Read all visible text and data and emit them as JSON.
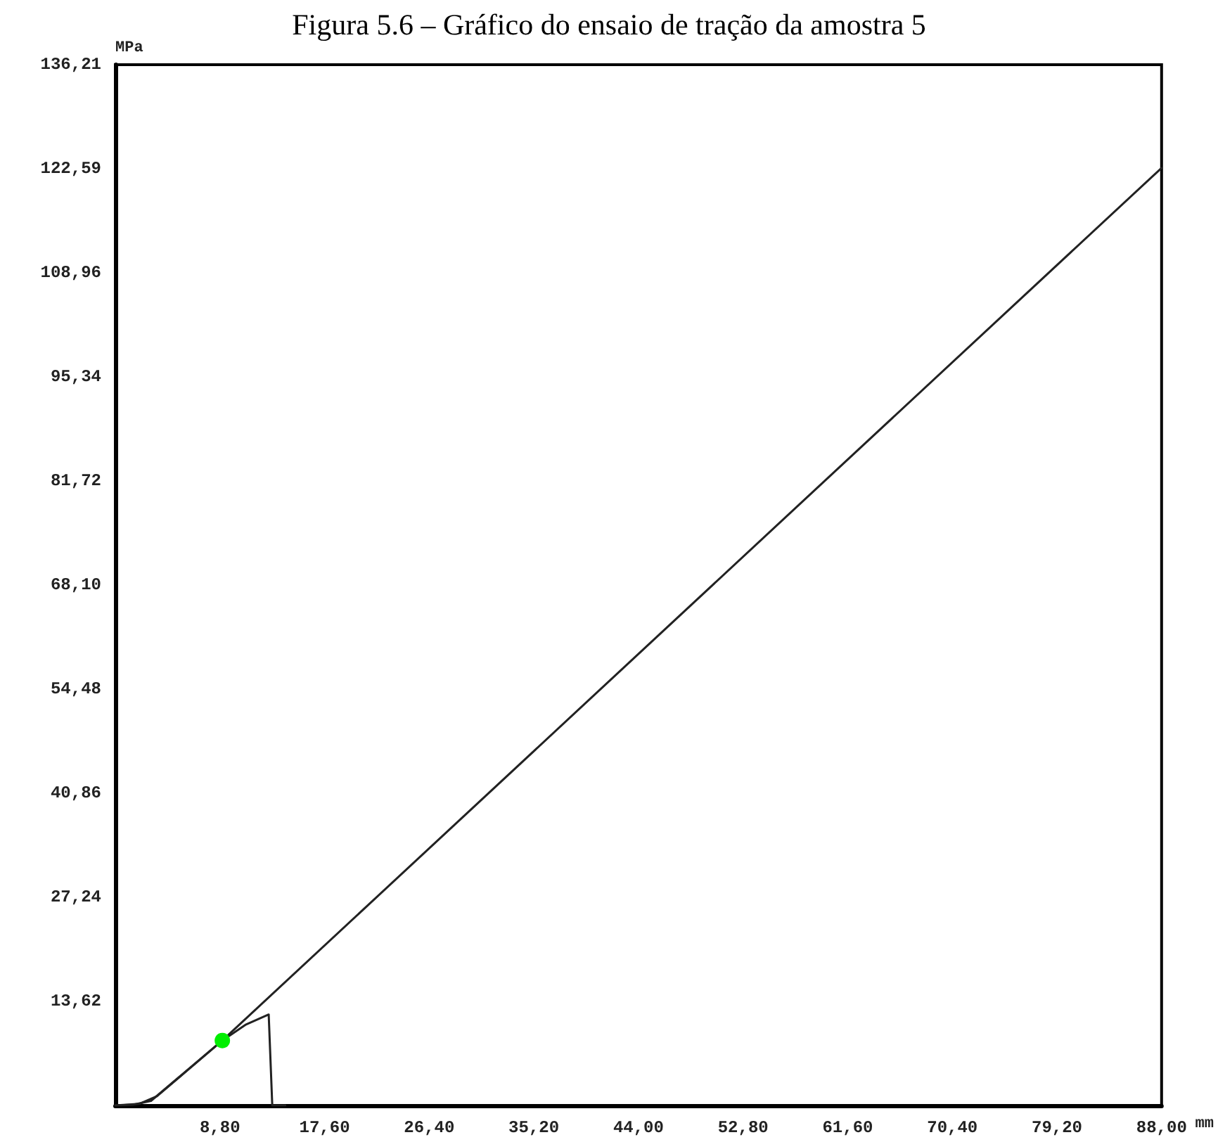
{
  "chart_data": {
    "type": "line",
    "title": "Figura 5.6 – Gráfico do ensaio de tração da amostra 5",
    "xlabel": "mm",
    "ylabel": "MPa",
    "xlim": [
      0,
      88
    ],
    "ylim": [
      0,
      136.21
    ],
    "xticks": [
      {
        "value": 8.8,
        "label": "8,80"
      },
      {
        "value": 17.6,
        "label": "17,60"
      },
      {
        "value": 26.4,
        "label": "26,40"
      },
      {
        "value": 35.2,
        "label": "35,20"
      },
      {
        "value": 44,
        "label": "44,00"
      },
      {
        "value": 52.8,
        "label": "52,80"
      },
      {
        "value": 61.6,
        "label": "61,60"
      },
      {
        "value": 70.4,
        "label": "70,40"
      },
      {
        "value": 79.2,
        "label": "79,20"
      },
      {
        "value": 88,
        "label": "88,00"
      }
    ],
    "yticks": [
      {
        "value": 13.62,
        "label": "13,62"
      },
      {
        "value": 27.24,
        "label": "27,24"
      },
      {
        "value": 40.86,
        "label": "40,86"
      },
      {
        "value": 54.48,
        "label": "54,48"
      },
      {
        "value": 68.1,
        "label": "68,10"
      },
      {
        "value": 81.72,
        "label": "81,72"
      },
      {
        "value": 95.34,
        "label": "95,34"
      },
      {
        "value": 108.96,
        "label": "108,96"
      },
      {
        "value": 122.59,
        "label": "122,59"
      },
      {
        "value": 136.21,
        "label": "136,21"
      }
    ],
    "grid": false,
    "marker": "none",
    "line_style": "solid",
    "series": [
      {
        "color": "#222222",
        "x": [
          0,
          1.5,
          3.0,
          9.0,
          88
        ],
        "values": [
          0,
          0.1,
          0.6,
          8.5,
          122.7
        ]
      },
      {
        "color": "#222222",
        "x": [
          0,
          2,
          3.5,
          9,
          11,
          12.9,
          13.2,
          14.3
        ],
        "values": [
          0,
          0.2,
          1.2,
          8.5,
          10.6,
          11.9,
          0,
          0
        ]
      },
      {
        "type": "scatter",
        "marker": "circle",
        "color": "#00ee00",
        "x": [
          9.0
        ],
        "values": [
          8.5
        ]
      }
    ]
  }
}
